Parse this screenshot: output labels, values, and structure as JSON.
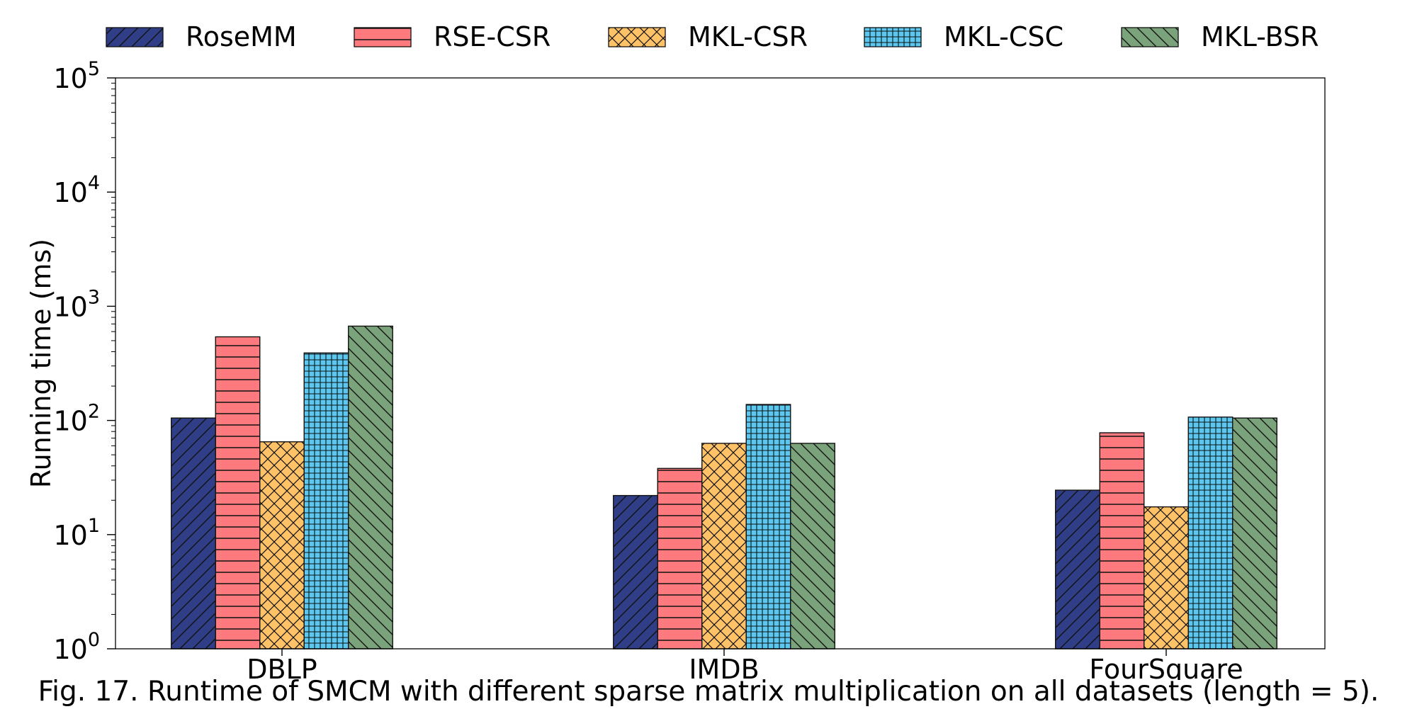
{
  "chart_data": {
    "type": "bar",
    "title": "",
    "xlabel": "",
    "ylabel": "Running time (ms)",
    "y_scale": "log",
    "ylim": [
      1,
      100000
    ],
    "y_ticks": [
      {
        "base": "10",
        "exp": "0"
      },
      {
        "base": "10",
        "exp": "1"
      },
      {
        "base": "10",
        "exp": "2"
      },
      {
        "base": "10",
        "exp": "3"
      },
      {
        "base": "10",
        "exp": "4"
      },
      {
        "base": "10",
        "exp": "5"
      }
    ],
    "grid": false,
    "legend_position": "top",
    "categories": [
      "DBLP",
      "IMDB",
      "FourSquare"
    ],
    "series": [
      {
        "name": "RoseMM",
        "values": [
          105,
          22,
          24.5
        ],
        "color": "#2f3e86",
        "hatch": "diag-up"
      },
      {
        "name": "RSE-CSR",
        "values": [
          540,
          38,
          78
        ],
        "color": "#ff7a7e",
        "hatch": "horizontal"
      },
      {
        "name": "MKL-CSR",
        "values": [
          65,
          63,
          17.5
        ],
        "color": "#ffc266",
        "hatch": "cross-diag"
      },
      {
        "name": "MKL-CSC",
        "values": [
          390,
          138,
          107
        ],
        "color": "#5ac8f0",
        "hatch": "grid"
      },
      {
        "name": "MKL-BSR",
        "values": [
          670,
          63,
          105
        ],
        "color": "#7ba37b",
        "hatch": "diag-down"
      }
    ]
  },
  "caption": "Fig. 17. Runtime of SMCM with different sparse matrix multiplication on all datasets (length = 5)."
}
